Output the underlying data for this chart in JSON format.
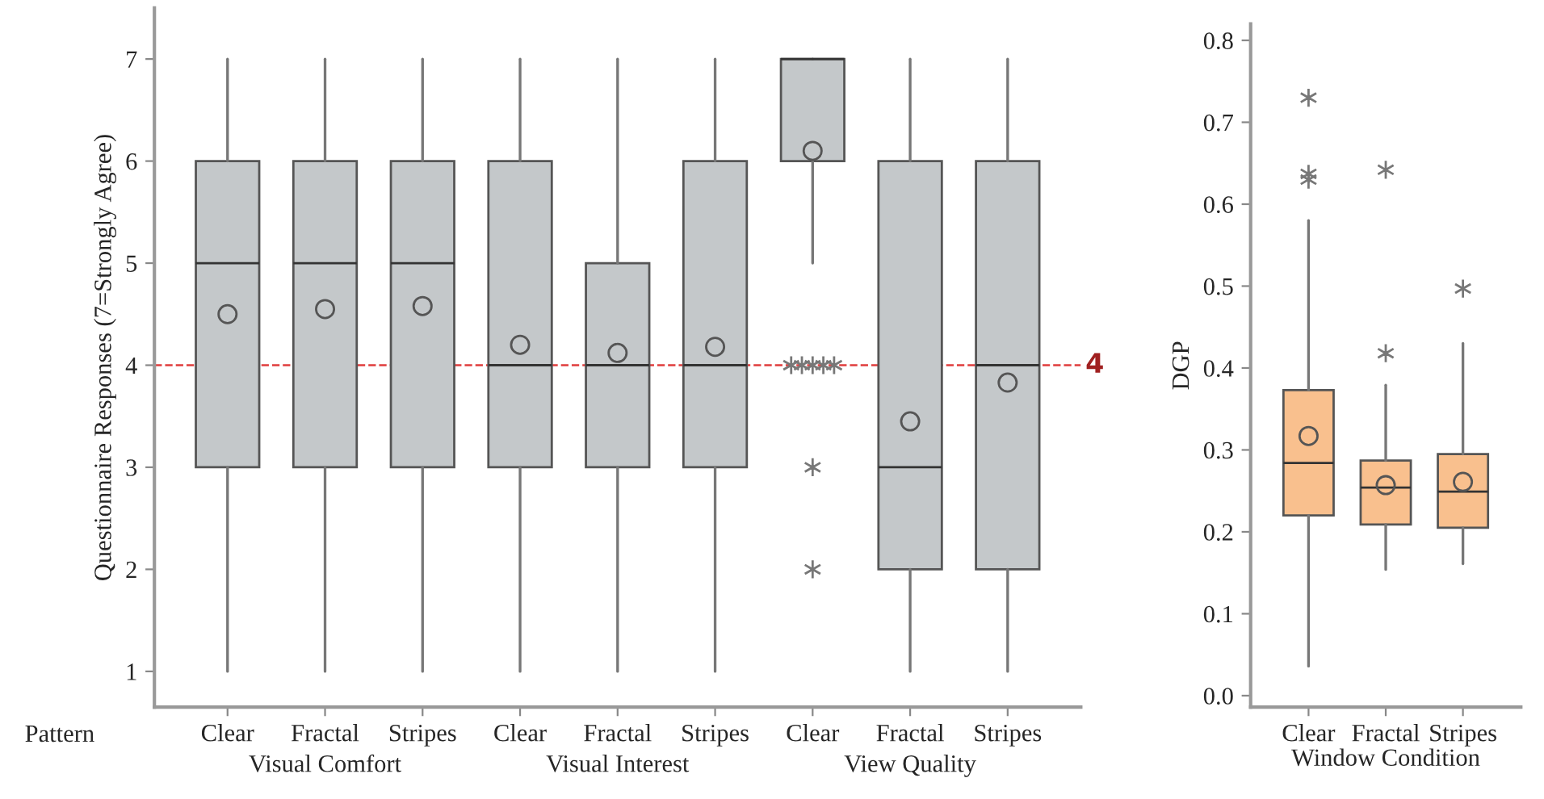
{
  "chart_data": [
    {
      "type": "box",
      "ylabel": "Questionnaire Responses (7=Strongly Agree)",
      "categories": [
        "Clear",
        "Fractal",
        "Stripes",
        "Clear",
        "Fractal",
        "Stripes",
        "Clear",
        "Fractal",
        "Stripes"
      ],
      "color": "#c4c8ca",
      "marker": "star",
      "ylim": [
        0.65,
        7.5
      ],
      "yticks": [
        1,
        2,
        3,
        4,
        5,
        6,
        7
      ],
      "annotations": [
        "Pattern",
        "Visual Comfort",
        "Visual Interest",
        "View Quality"
      ],
      "ref_lines": [
        {
          "axis": "y",
          "value": 4,
          "label": "4",
          "color": "#e03c3c",
          "line_style": "dashed"
        }
      ],
      "boxes": [
        {
          "low": 1,
          "q1": 3,
          "median": 5,
          "q3": 6,
          "high": 7,
          "mean": 4.5
        },
        {
          "low": 1,
          "q1": 3,
          "median": 5,
          "q3": 6,
          "high": 7,
          "mean": 4.55
        },
        {
          "low": 1,
          "q1": 3,
          "median": 5,
          "q3": 6,
          "high": 7,
          "mean": 4.58
        },
        {
          "low": 1,
          "q1": 3,
          "median": 4,
          "q3": 6,
          "high": 7,
          "mean": 4.2
        },
        {
          "low": 1,
          "q1": 3,
          "median": 4,
          "q3": 5,
          "high": 7,
          "mean": 4.12
        },
        {
          "low": 1,
          "q1": 3,
          "median": 4,
          "q3": 6,
          "high": 7,
          "mean": 4.18
        },
        {
          "low": 5,
          "q1": 6,
          "median": 7,
          "q3": 7,
          "high": 7,
          "mean": 6.1,
          "outliers": [
            4,
            4,
            4,
            4,
            4,
            3,
            2
          ]
        },
        {
          "low": 1,
          "q1": 2,
          "median": 3,
          "q3": 6,
          "high": 7,
          "mean": 3.45
        },
        {
          "low": 1,
          "q1": 2,
          "median": 4,
          "q3": 6,
          "high": 7,
          "mean": 3.83
        }
      ]
    },
    {
      "type": "box",
      "xlabel": "Window Condition",
      "ylabel": "DGP",
      "categories": [
        "Clear",
        "Fractal",
        "Stripes"
      ],
      "color": "#f9c08e",
      "marker": "star",
      "ylim": [
        -0.014,
        0.82
      ],
      "yticks": [
        {
          "value": 0,
          "label": "0.0"
        },
        {
          "value": 0.1,
          "label": "0.1"
        },
        {
          "value": 0.2,
          "label": "0.2"
        },
        {
          "value": 0.3,
          "label": "0.3"
        },
        {
          "value": 0.4,
          "label": "0.4"
        },
        {
          "value": 0.5,
          "label": "0.5"
        },
        {
          "value": 0.6,
          "label": "0.6"
        },
        {
          "value": 0.7,
          "label": "0.7"
        },
        {
          "value": 0.8,
          "label": "0.8"
        }
      ],
      "boxes": [
        {
          "low": 0.036,
          "q1": 0.22,
          "median": 0.284,
          "q3": 0.373,
          "high": 0.58,
          "mean": 0.317,
          "outliers": [
            0.73,
            0.637,
            0.63
          ]
        },
        {
          "low": 0.154,
          "q1": 0.209,
          "median": 0.254,
          "q3": 0.287,
          "high": 0.379,
          "mean": 0.257,
          "outliers": [
            0.418,
            0.642
          ]
        },
        {
          "low": 0.161,
          "q1": 0.205,
          "median": 0.249,
          "q3": 0.295,
          "high": 0.43,
          "mean": 0.261,
          "outliers": [
            0.497
          ]
        }
      ]
    }
  ]
}
